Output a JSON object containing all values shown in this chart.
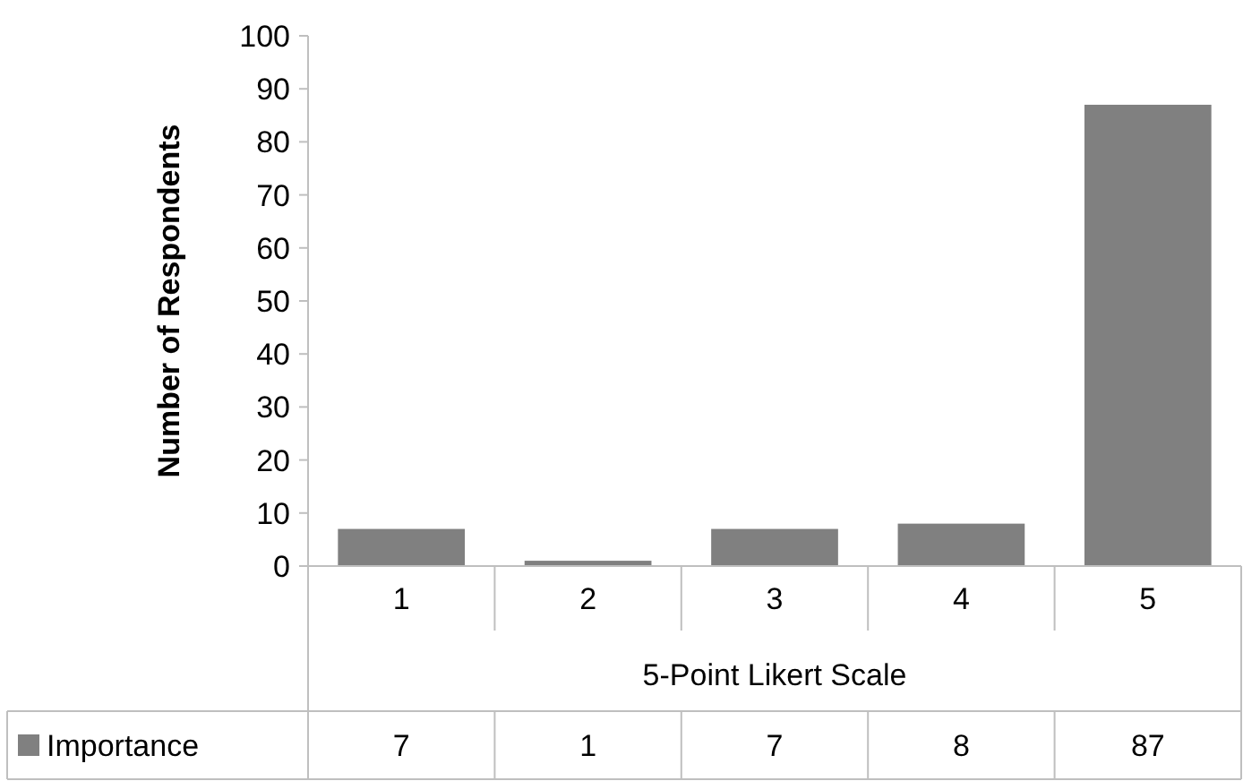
{
  "chart_data": {
    "type": "bar",
    "xlabel": "5-Point Likert Scale",
    "ylabel": "Number of Respondents",
    "categories": [
      "1",
      "2",
      "3",
      "4",
      "5"
    ],
    "series": [
      {
        "name": "Importance",
        "color": "#808080",
        "values": [
          7,
          1,
          7,
          8,
          87
        ]
      }
    ],
    "ylim": [
      0,
      100
    ],
    "yticks": [
      0,
      10,
      20,
      30,
      40,
      50,
      60,
      70,
      80,
      90,
      100
    ],
    "grid": false,
    "data_labels": true
  }
}
